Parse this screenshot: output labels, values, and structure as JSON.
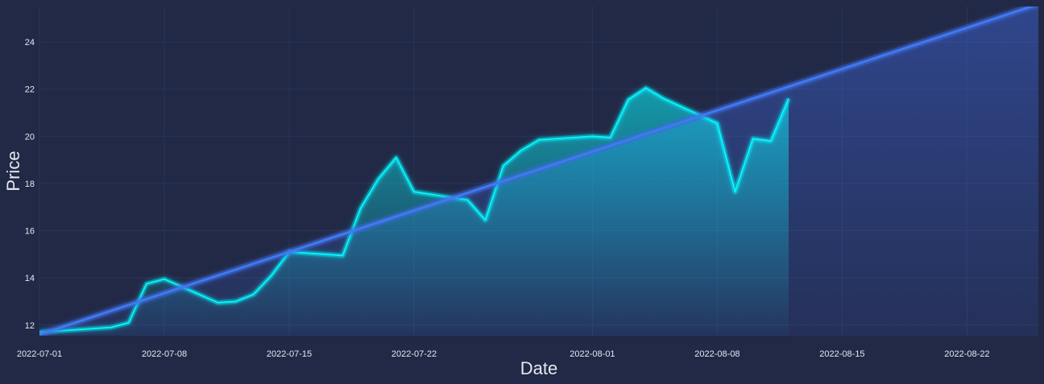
{
  "chart_data": {
    "type": "line",
    "title": "",
    "xlabel": "Date",
    "ylabel": "Price",
    "xlim": [
      "2022-07-01",
      "2022-08-26"
    ],
    "ylim": [
      11.55,
      25.5
    ],
    "grid": true,
    "x_ticks": [
      "2022-07-01",
      "2022-07-08",
      "2022-07-15",
      "2022-07-22",
      "2022-08-01",
      "2022-08-08",
      "2022-08-15",
      "2022-08-22"
    ],
    "y_ticks": [
      12,
      14,
      16,
      18,
      20,
      22,
      24
    ],
    "series": [
      {
        "kind": "line-with-gradient-fill",
        "color": "#08F7FE",
        "x": [
          "2022-07-01",
          "2022-07-05",
          "2022-07-06",
          "2022-07-07",
          "2022-07-08",
          "2022-07-11",
          "2022-07-12",
          "2022-07-13",
          "2022-07-14",
          "2022-07-15",
          "2022-07-18",
          "2022-07-19",
          "2022-07-20",
          "2022-07-21",
          "2022-07-22",
          "2022-07-25",
          "2022-07-26",
          "2022-07-27",
          "2022-07-28",
          "2022-07-29",
          "2022-08-01",
          "2022-08-02",
          "2022-08-03",
          "2022-08-04",
          "2022-08-05",
          "2022-08-08",
          "2022-08-09",
          "2022-08-10",
          "2022-08-11",
          "2022-08-12"
        ],
        "y": [
          11.7,
          11.9,
          12.1,
          13.75,
          13.95,
          12.95,
          13.0,
          13.3,
          14.1,
          15.1,
          14.95,
          16.95,
          18.2,
          19.1,
          17.65,
          17.3,
          16.45,
          18.75,
          19.4,
          19.85,
          20.0,
          19.95,
          21.55,
          22.05,
          21.6,
          20.55,
          17.65,
          19.9,
          19.8,
          21.6
        ]
      },
      {
        "kind": "trend-line-with-fill",
        "color": "#4169E1",
        "x": [
          "2022-07-01",
          "2022-08-26"
        ],
        "y": [
          11.6,
          25.6
        ]
      }
    ]
  }
}
